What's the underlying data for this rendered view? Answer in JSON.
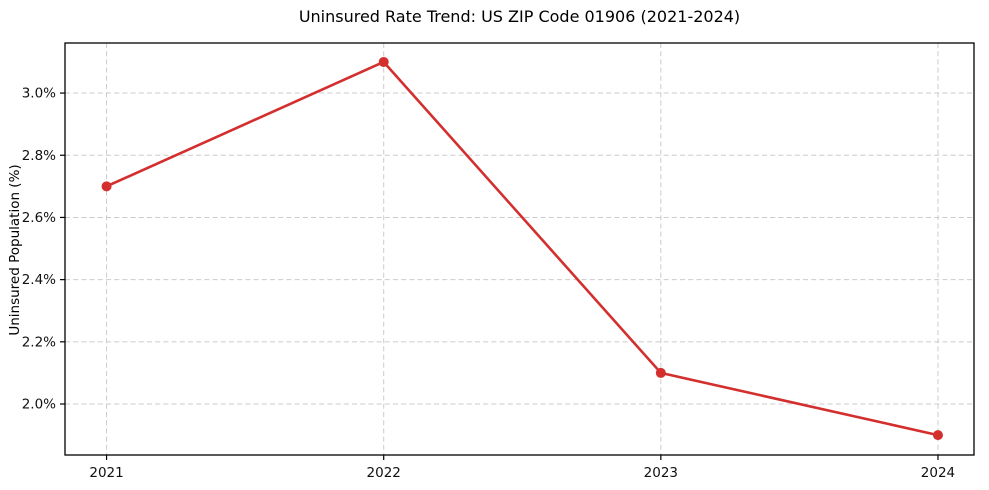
{
  "chart_data": {
    "type": "line",
    "title": "Uninsured Rate Trend: US ZIP Code 01906 (2021-2024)",
    "xlabel": "",
    "ylabel": "Uninsured Population (%)",
    "x": [
      2021,
      2022,
      2023,
      2024
    ],
    "values": [
      2.7,
      3.1,
      2.1,
      1.9
    ],
    "x_tick_labels": [
      "2021",
      "2022",
      "2023",
      "2024"
    ],
    "y_ticks": [
      2.0,
      2.2,
      2.4,
      2.6,
      2.8,
      3.0
    ],
    "y_tick_labels": [
      "2.0%",
      "2.2%",
      "2.4%",
      "2.6%",
      "2.8%",
      "3.0%"
    ],
    "xlim": [
      2020.85,
      2024.13
    ],
    "ylim": [
      1.836,
      3.161
    ],
    "grid": true,
    "grid_style": "dashed",
    "legend_position": "none",
    "line_color": "#d32f2f",
    "marker": "circle",
    "marker_color": "#d32f2f",
    "grid_color": "#cbcbcb",
    "spine_color": "#000000",
    "text_color": "#111111",
    "background_color": "#ffffff"
  }
}
